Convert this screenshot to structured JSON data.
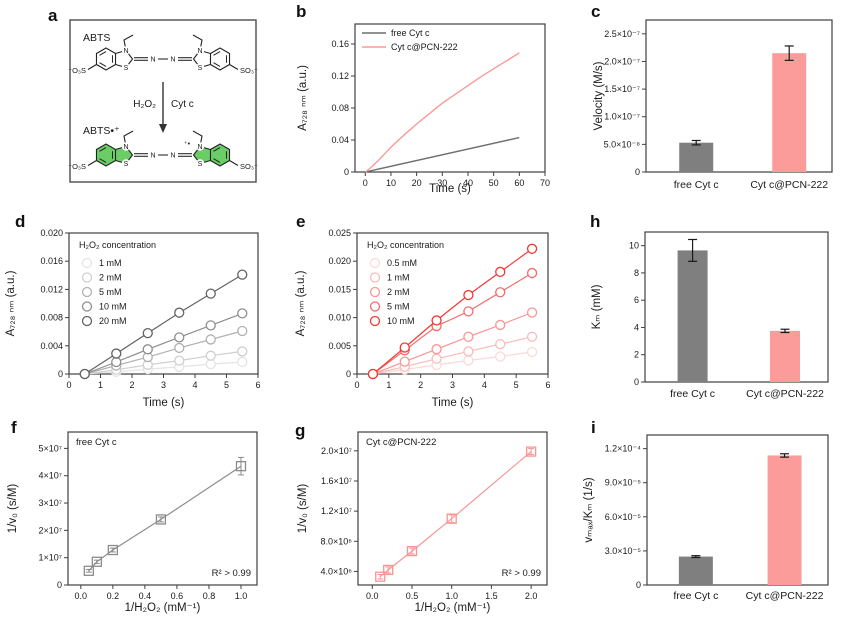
{
  "panels": {
    "a": {
      "label": "a"
    },
    "b": {
      "label": "b"
    },
    "c": {
      "label": "c"
    },
    "d": {
      "label": "d"
    },
    "e": {
      "label": "e"
    },
    "f": {
      "label": "f"
    },
    "g": {
      "label": "g"
    },
    "h": {
      "label": "h"
    },
    "i": {
      "label": "i"
    }
  },
  "chart_data": [
    {
      "panel": "a",
      "type": "scheme",
      "texts": {
        "reactant_label": "ABTS",
        "product_label": "ABTS•⁺",
        "oxidant": "H₂O₂",
        "catalyst": "Cyt c",
        "nitrogen": "N",
        "sulfur": "S",
        "sulfonate_left": "⁻O₃S",
        "sulfonate_right": "SO₃⁻",
        "radical_mark": "⁺•"
      },
      "colors": {
        "product_fill": "#6bcd65",
        "product_text": "#74d670",
        "bond": "#222222",
        "box_border": "#4d4d4d",
        "radical_mark": "#a93226"
      }
    },
    {
      "panel": "b",
      "type": "kinetic-curves",
      "xlabel": "Time (s)",
      "ylabel": "A₇₂₈ ₙₘ (a.u.)",
      "xlim": [
        -4,
        70
      ],
      "ylim": [
        0,
        0.185
      ],
      "xticks": {
        "values": [
          0,
          10,
          20,
          30,
          40,
          50,
          60,
          70
        ],
        "labels": [
          "0",
          "10",
          "20",
          "30",
          "40",
          "50",
          "60",
          "70"
        ]
      },
      "yticks": {
        "values": [
          0,
          0.04,
          0.08,
          0.12,
          0.16
        ],
        "labels": [
          "0",
          "0.04",
          "0.08",
          "0.12",
          "0.16"
        ]
      },
      "series": [
        {
          "name": "free Cyt c",
          "color": "#6f6f6f",
          "x": [
            0,
            60
          ],
          "y": [
            0,
            0.043
          ]
        },
        {
          "name": "Cyt c@PCN-222",
          "color": "#fa9a98",
          "x": [
            0,
            2,
            5,
            10,
            15,
            20,
            25,
            30,
            35,
            40,
            45,
            50,
            55,
            60
          ],
          "y": [
            0,
            0.005,
            0.014,
            0.031,
            0.046,
            0.06,
            0.073,
            0.086,
            0.097,
            0.108,
            0.119,
            0.129,
            0.139,
            0.149
          ]
        }
      ]
    },
    {
      "panel": "c",
      "type": "bar",
      "ylabel": "Velocity (M/s)",
      "ylim": [
        0,
        2.75e-07
      ],
      "yticks": {
        "values": [
          0,
          5e-08,
          1e-07,
          1.5e-07,
          2e-07,
          2.5e-07
        ],
        "labels": [
          "0",
          "5.0×10⁻⁸",
          "1.0×10⁻⁷",
          "1.5×10⁻⁷",
          "2.0×10⁻⁷",
          "2.5×10⁻⁷"
        ]
      },
      "categories": [
        "free Cyt c",
        "Cyt c@PCN-222"
      ],
      "values": [
        5.3e-08,
        2.15e-07
      ],
      "errors": [
        4e-09,
        1.3e-08
      ],
      "bar_colors": [
        "#7f7f7f",
        "#fb9c9b"
      ]
    },
    {
      "panel": "d",
      "type": "scatter-series",
      "xlabel": "Time (s)",
      "ylabel": "A₇₂₈ ₙₘ (a.u.)",
      "legend_title": "H₂O₂ concentration",
      "xlim": [
        0,
        6
      ],
      "ylim": [
        0,
        0.02
      ],
      "xticks": {
        "values": [
          0,
          1,
          2,
          3,
          4,
          5,
          6
        ],
        "labels": [
          "0",
          "1",
          "2",
          "3",
          "4",
          "5",
          "6"
        ]
      },
      "yticks": {
        "values": [
          0,
          0.004,
          0.008,
          0.012,
          0.016,
          0.02
        ],
        "labels": [
          "0",
          "0.004",
          "0.008",
          "0.012",
          "0.016",
          "0.020"
        ]
      },
      "x": [
        0.5,
        1.5,
        2.5,
        3.5,
        4.5,
        5.5
      ],
      "series": [
        {
          "name": "1 mM",
          "color": "#e4e4e4",
          "y": [
            0,
            0.0003,
            0.0007,
            0.001,
            0.0014,
            0.0017
          ]
        },
        {
          "name": "2 mM",
          "color": "#cfcfcf",
          "y": [
            0,
            0.0006,
            0.0013,
            0.0019,
            0.0026,
            0.0032
          ]
        },
        {
          "name": "5 mM",
          "color": "#b1b1b1",
          "y": [
            0,
            0.0012,
            0.0024,
            0.0037,
            0.0049,
            0.0061
          ]
        },
        {
          "name": "10 mM",
          "color": "#8e8e8e",
          "y": [
            0,
            0.0017,
            0.0035,
            0.0052,
            0.0069,
            0.0086
          ]
        },
        {
          "name": "20 mM",
          "color": "#636363",
          "y": [
            0,
            0.0029,
            0.0058,
            0.0087,
            0.0114,
            0.0141
          ]
        }
      ]
    },
    {
      "panel": "e",
      "type": "scatter-series",
      "xlabel": "Time (s)",
      "ylabel": "A₇₂₈ ₙₘ (a.u.)",
      "legend_title": "H₂O₂ concentration",
      "xlim": [
        0,
        6
      ],
      "ylim": [
        0,
        0.025
      ],
      "xticks": {
        "values": [
          0,
          1,
          2,
          3,
          4,
          5,
          6
        ],
        "labels": [
          "0",
          "1",
          "2",
          "3",
          "4",
          "5",
          "6"
        ]
      },
      "yticks": {
        "values": [
          0,
          0.005,
          0.01,
          0.015,
          0.02,
          0.025
        ],
        "labels": [
          "0",
          "0.005",
          "0.010",
          "0.015",
          "0.020",
          "0.025"
        ]
      },
      "x": [
        0.5,
        1.5,
        2.5,
        3.5,
        4.5,
        5.5
      ],
      "series": [
        {
          "name": "0.5 mM",
          "color": "#fcd9d8",
          "y": [
            0,
            0.0008,
            0.0016,
            0.0024,
            0.0031,
            0.0039
          ]
        },
        {
          "name": "1 mM",
          "color": "#fabbba",
          "y": [
            0,
            0.0013,
            0.0027,
            0.004,
            0.0053,
            0.0066
          ]
        },
        {
          "name": "2 mM",
          "color": "#f89695",
          "y": [
            0,
            0.0022,
            0.0044,
            0.0066,
            0.0087,
            0.0109
          ]
        },
        {
          "name": "5 mM",
          "color": "#f66b69",
          "y": [
            0,
            0.0042,
            0.0085,
            0.0111,
            0.0145,
            0.0179
          ]
        },
        {
          "name": "10 mM",
          "color": "#f23833",
          "y": [
            0,
            0.0047,
            0.0095,
            0.014,
            0.0181,
            0.0222
          ]
        }
      ]
    },
    {
      "panel": "f",
      "type": "lineweaver",
      "annotation": "free Cyt c",
      "r2_label": "R² > 0.99",
      "xlabel": "1/H₂O₂ (mM⁻¹)",
      "ylabel": "1/v₀ (s/M)",
      "xlim": [
        -0.08,
        1.1
      ],
      "ylim": [
        0,
        56000000.0
      ],
      "xticks": {
        "values": [
          0,
          0.2,
          0.4,
          0.6,
          0.8,
          1.0
        ],
        "labels": [
          "0.0",
          "0.2",
          "0.4",
          "0.6",
          "0.8",
          "1.0"
        ]
      },
      "yticks": {
        "values": [
          0,
          10000000.0,
          20000000.0,
          30000000.0,
          40000000.0,
          50000000.0
        ],
        "labels": [
          "0",
          "1×10⁷",
          "2×10⁷",
          "3×10⁷",
          "4×10⁷",
          "5×10⁷"
        ]
      },
      "color": "#8c8c8c",
      "x": [
        0.05,
        0.1,
        0.2,
        0.5,
        1.0
      ],
      "y": [
        5200000.0,
        8500000.0,
        12800000.0,
        24000000.0,
        43500000.0
      ],
      "yerr": [
        500000.0,
        600000.0,
        700000.0,
        900000.0,
        3200000.0
      ]
    },
    {
      "panel": "g",
      "type": "lineweaver",
      "annotation": "Cyt c@PCN-222",
      "r2_label": "R² > 0.99",
      "xlabel": "1/H₂O₂ (mM⁻¹)",
      "ylabel": "1/v₀ (s/M)",
      "xlim": [
        -0.18,
        2.2
      ],
      "ylim": [
        2200000.0,
        22500000.0
      ],
      "xticks": {
        "values": [
          0,
          0.5,
          1.0,
          1.5,
          2.0
        ],
        "labels": [
          "0.0",
          "0.5",
          "1.0",
          "1.5",
          "2.0"
        ]
      },
      "yticks": {
        "values": [
          4000000.0,
          8000000.0,
          12000000.0,
          16000000.0,
          20000000.0
        ],
        "labels": [
          "4.0×10⁶",
          "8.0×10⁶",
          "1.2×10⁷",
          "1.6×10⁷",
          "2.0×10⁷"
        ]
      },
      "color": "#f89593",
      "x": [
        0.1,
        0.2,
        0.5,
        1.0,
        2.0
      ],
      "y": [
        3300000.0,
        4200000.0,
        6700000.0,
        11000000.0,
        19900000.0
      ],
      "yerr": [
        300000.0,
        400000.0,
        400000.0,
        500000.0,
        400000.0
      ]
    },
    {
      "panel": "h",
      "type": "bar",
      "ylabel": "Kₘ (mM)",
      "ylim": [
        0,
        11
      ],
      "yticks": {
        "values": [
          0,
          2,
          4,
          6,
          8,
          10
        ],
        "labels": [
          "0",
          "2",
          "4",
          "6",
          "8",
          "10"
        ]
      },
      "categories": [
        "free Cyt c",
        "Cyt c@PCN-222"
      ],
      "values": [
        9.65,
        3.75
      ],
      "errors": [
        0.8,
        0.12
      ],
      "bar_colors": [
        "#7f7f7f",
        "#fb9c9b"
      ]
    },
    {
      "panel": "i",
      "type": "bar",
      "ylabel": "vₘₐₓ/Kₘ (1/s)",
      "ylim": [
        0,
        0.000132
      ],
      "yticks": {
        "values": [
          0,
          3e-05,
          6e-05,
          9e-05,
          0.00012
        ],
        "labels": [
          "0",
          "3.0×10⁻⁵",
          "6.0×10⁻⁵",
          "9.0×10⁻⁵",
          "1.2×10⁻⁴"
        ]
      },
      "categories": [
        "free Cyt c",
        "Cyt c@PCN-222"
      ],
      "values": [
        2.5e-05,
        0.000114
      ],
      "errors": [
        8e-07,
        1.5e-06
      ],
      "bar_colors": [
        "#7f7f7f",
        "#fb9c9b"
      ]
    }
  ]
}
